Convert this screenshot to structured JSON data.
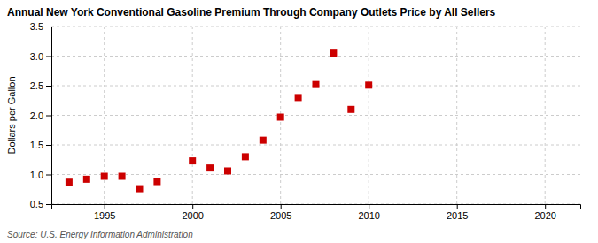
{
  "chart_data": {
    "type": "scatter",
    "title": "Annual New York Conventional Gasoline Premium Through Company Outlets Price by All Sellers",
    "y_label": "Dollars per Gallon",
    "annotations": [
      "Source: U.S. Energy Information Administration"
    ],
    "x": [
      1993,
      1994,
      1995,
      1996,
      1997,
      1998,
      2000,
      2001,
      2002,
      2003,
      2004,
      2005,
      2006,
      2007,
      2008,
      2009,
      2010
    ],
    "values": [
      0.87,
      0.92,
      0.97,
      0.97,
      0.76,
      0.88,
      1.23,
      1.11,
      1.06,
      1.3,
      1.58,
      1.97,
      2.3,
      2.52,
      3.05,
      2.1,
      2.51
    ],
    "color": "#cc0000",
    "marker": "square",
    "xlim": [
      1992,
      2022
    ],
    "ylim": [
      0.5,
      3.5
    ],
    "xticks": [
      1995,
      2000,
      2005,
      2010,
      2015,
      2020
    ],
    "yticks": [
      0.5,
      {
        "value": 1.0,
        "label": "1.0"
      },
      1.5,
      {
        "value": 2.0,
        "label": "2.0"
      },
      2.5,
      {
        "value": 3.0,
        "label": "3.0"
      },
      3.5
    ],
    "grid": true
  }
}
